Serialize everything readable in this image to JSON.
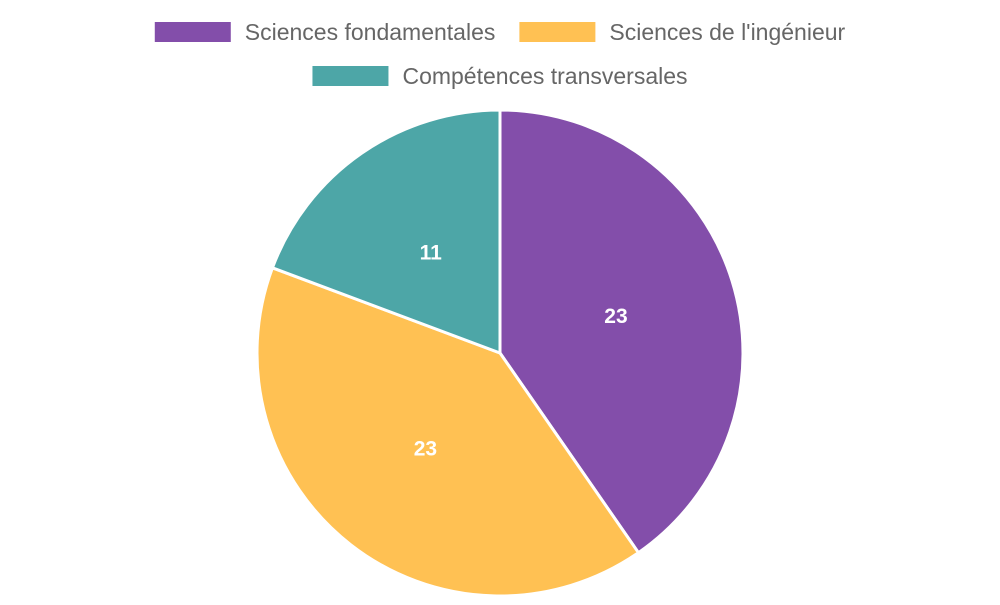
{
  "chart_data": {
    "type": "pie",
    "title": "",
    "legend_position": "top",
    "series": [
      {
        "slices": [
          {
            "label": "Sciences fondamentales",
            "value": 23,
            "color": "#834EAA"
          },
          {
            "label": "Sciences de l'ingénieur",
            "value": 23,
            "color": "#FFC153"
          },
          {
            "label": "Compétences transversales",
            "value": 11,
            "color": "#4DA6A7"
          }
        ]
      }
    ]
  }
}
